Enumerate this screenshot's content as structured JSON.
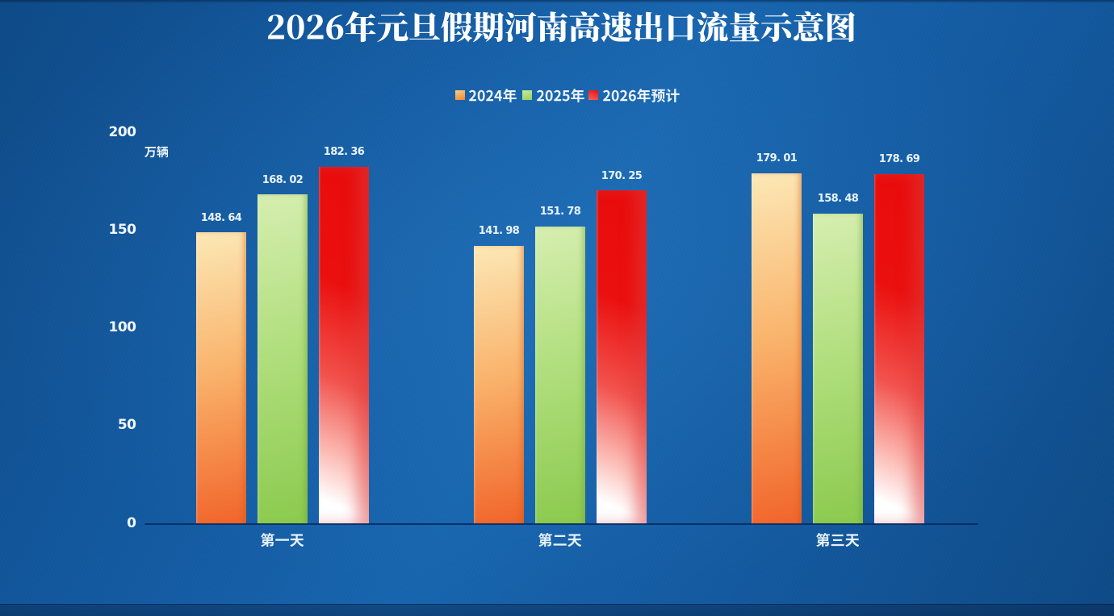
{
  "page": {
    "background_color": "#1362A9",
    "accent_navy": "#0B2F68"
  },
  "chart": {
    "title": "2026年元旦假期河南高速出口流量示意图",
    "unit_label": "万辆"
  },
  "chart_data": {
    "type": "bar",
    "title": "2026年元旦假期河南高速出口流量示意图",
    "categories": [
      "第一天",
      "第二天",
      "第三天"
    ],
    "series": [
      {
        "name": "2024年",
        "values": [
          148.64,
          141.98,
          179.01
        ],
        "value_labels": [
          "148. 64",
          "141. 98",
          "179. 01"
        ],
        "gradient": {
          "angle": "168deg",
          "stops": [
            "#FCE8B6 0%",
            "#F9B26A 48%",
            "#F1642A 100%"
          ],
          "edge": "rgba(205,85,15,0.45)",
          "edge_width": 5
        }
      },
      {
        "name": "2025年",
        "values": [
          168.02,
          151.78,
          158.48
        ],
        "value_labels": [
          "168. 02",
          "151. 78",
          "158. 48"
        ],
        "gradient": {
          "angle": "168deg",
          "stops": [
            "#D6EEB0 0%",
            "#B2DF7F 45%",
            "#8BCA4E 100%"
          ],
          "edge": "rgba(110,160,50,0.5)",
          "edge_width": 5
        }
      },
      {
        "name": "2026年预计",
        "values": [
          182.36,
          170.25,
          178.69
        ],
        "value_labels": [
          "182. 36",
          "170. 25",
          "178. 69"
        ],
        "gradient": {
          "angle": "203deg",
          "stops": [
            "#E90C0C 0%",
            "#EA100F 34%",
            "#F2524D 60%",
            "#FBB6AF 79%",
            "#FFFFFF 93%"
          ],
          "edge": "rgba(222,62,62,0.5)",
          "edge_width": 16
        }
      }
    ],
    "ylabel": "万辆",
    "yticks": [
      "0",
      "50",
      "100",
      "150",
      "200"
    ],
    "ylim": [
      0,
      200
    ],
    "legend_position": "top",
    "grid": false
  }
}
